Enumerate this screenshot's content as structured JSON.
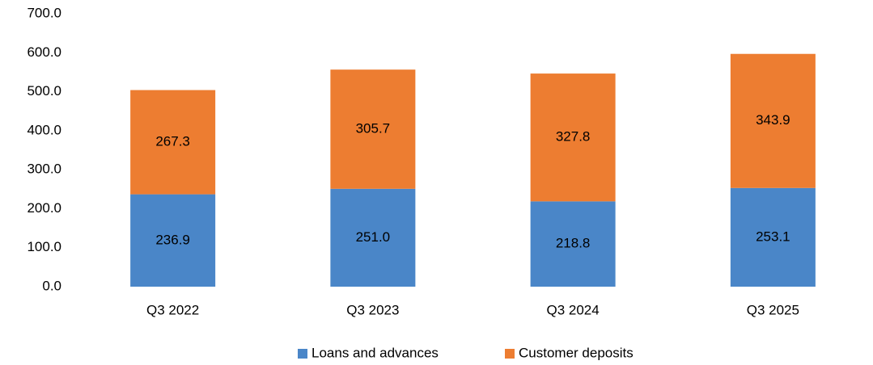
{
  "chart_data": {
    "type": "stacked_bar",
    "categories": [
      "Q3 2022",
      "Q3 2023",
      "Q3 2024",
      "Q3 2025"
    ],
    "series": [
      {
        "name": "Loans and advances",
        "color": "#4a86c8",
        "values": [
          236.9,
          251.0,
          218.8,
          253.1
        ],
        "value_labels": [
          "236.9",
          "251.0",
          "218.8",
          "253.1"
        ]
      },
      {
        "name": "Customer deposits",
        "color": "#ed7d31",
        "values": [
          267.3,
          305.7,
          327.8,
          343.9
        ],
        "value_labels": [
          "267.3",
          "305.7",
          "327.8",
          "343.9"
        ]
      }
    ],
    "ylim": [
      0,
      700
    ],
    "yticks": [
      {
        "value": 0,
        "label": "0.0"
      },
      {
        "value": 100,
        "label": "100.0"
      },
      {
        "value": 200,
        "label": "200.0"
      },
      {
        "value": 300,
        "label": "300.0"
      },
      {
        "value": 400,
        "label": "400.0"
      },
      {
        "value": 500,
        "label": "500.0"
      },
      {
        "value": 600,
        "label": "600.0"
      },
      {
        "value": 700,
        "label": "700.0"
      }
    ],
    "grid": false,
    "legend": "bottom"
  }
}
